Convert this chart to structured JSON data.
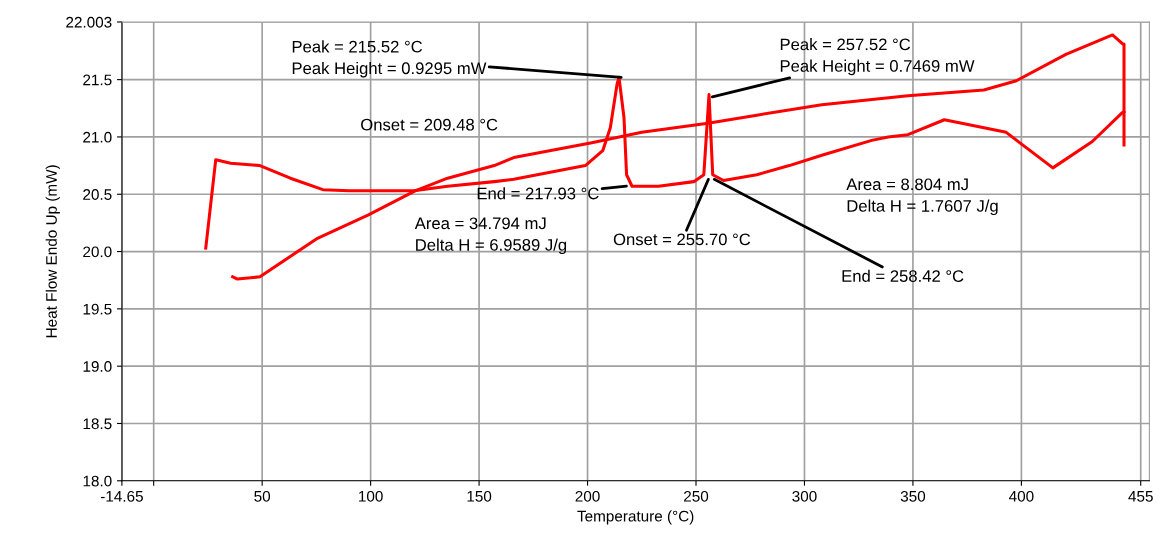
{
  "chart_data": {
    "type": "line",
    "xlabel": "Temperature (°C)",
    "ylabel": "Heat Flow Endo Up (mW)",
    "xlim": [
      -14.65,
      459
    ],
    "ylim": [
      18.0,
      22.003
    ],
    "xticks": [
      {
        "value": -14.65,
        "label": "-14.65"
      },
      {
        "value": 0,
        "label": null
      },
      50,
      100,
      150,
      200,
      250,
      300,
      350,
      400,
      455
    ],
    "yticks": [
      {
        "value": 18.0,
        "label": "18.0"
      },
      18.5,
      {
        "value": 19.0,
        "label": "19.0"
      },
      19.5,
      {
        "value": 20.0,
        "label": "20.0"
      },
      20.5,
      {
        "value": 21.0,
        "label": "21.0"
      },
      21.5,
      22.003
    ],
    "grid": true,
    "line_style": "solid",
    "marker": "none",
    "series": [
      {
        "color": "#ff0000",
        "x": [
          24,
          28.6,
          35.5,
          49,
          63,
          78,
          90,
          120,
          135.5,
          157,
          166,
          199,
          207,
          210.5,
          213.6,
          214.5,
          216.8,
          218,
          220.5,
          232.7,
          249,
          253.6,
          256,
          257.7,
          262.7,
          278,
          293,
          308,
          331,
          338.6,
          347.7,
          364.5,
          393,
          414.5,
          432.7,
          446.4,
          447.3
        ],
        "values": [
          20.03,
          20.8,
          20.77,
          20.75,
          20.64,
          20.54,
          20.53,
          20.53,
          20.57,
          20.61,
          20.63,
          20.75,
          20.88,
          21.08,
          21.46,
          21.52,
          21.17,
          20.67,
          20.57,
          20.57,
          20.61,
          20.67,
          21.37,
          20.67,
          20.62,
          20.67,
          20.75,
          20.84,
          20.97,
          21.0,
          21.02,
          21.15,
          21.04,
          20.73,
          20.96,
          21.21,
          21.22
        ]
      },
      {
        "color": "#ff0000",
        "x": [
          447.3,
          447.3,
          446.8,
          442,
          420.5,
          397.7,
          382.7,
          347.7,
          308,
          278,
          255.5,
          225,
          202,
          166,
          157,
          135.5,
          120.5,
          99,
          75,
          49,
          38.6,
          36.4
        ],
        "values": [
          20.93,
          21.81,
          21.81,
          21.89,
          21.72,
          21.49,
          21.41,
          21.36,
          21.28,
          21.19,
          21.12,
          21.04,
          20.95,
          20.82,
          20.75,
          20.64,
          20.53,
          20.32,
          20.11,
          19.78,
          19.76,
          19.78
        ]
      }
    ],
    "annotations": [
      {
        "text": "Peak = 215.52 °C\nPeak Height = 0.9295 mW",
        "x": 215.52,
        "y": 21.52
      },
      "Onset = 209.48 °C",
      {
        "text": "End = 217.93 °C",
        "x": 217.93,
        "y": 20.57
      },
      {
        "text": "Area = 34.794 mJ\nDelta H = 6.9589 J/g"
      },
      {
        "text": "Peak = 257.52 °C\nPeak Height = 0.7469 mW",
        "x": 257.52,
        "y": 21.35
      },
      {
        "text": "Area = 8.804 mJ\nDelta H = 1.7607 J/g"
      },
      {
        "text": "Onset = 255.70 °C",
        "x": 255.7,
        "y": 20.63
      },
      {
        "text": "End = 258.42 °C",
        "x": 258.42,
        "y": 20.63
      }
    ]
  }
}
